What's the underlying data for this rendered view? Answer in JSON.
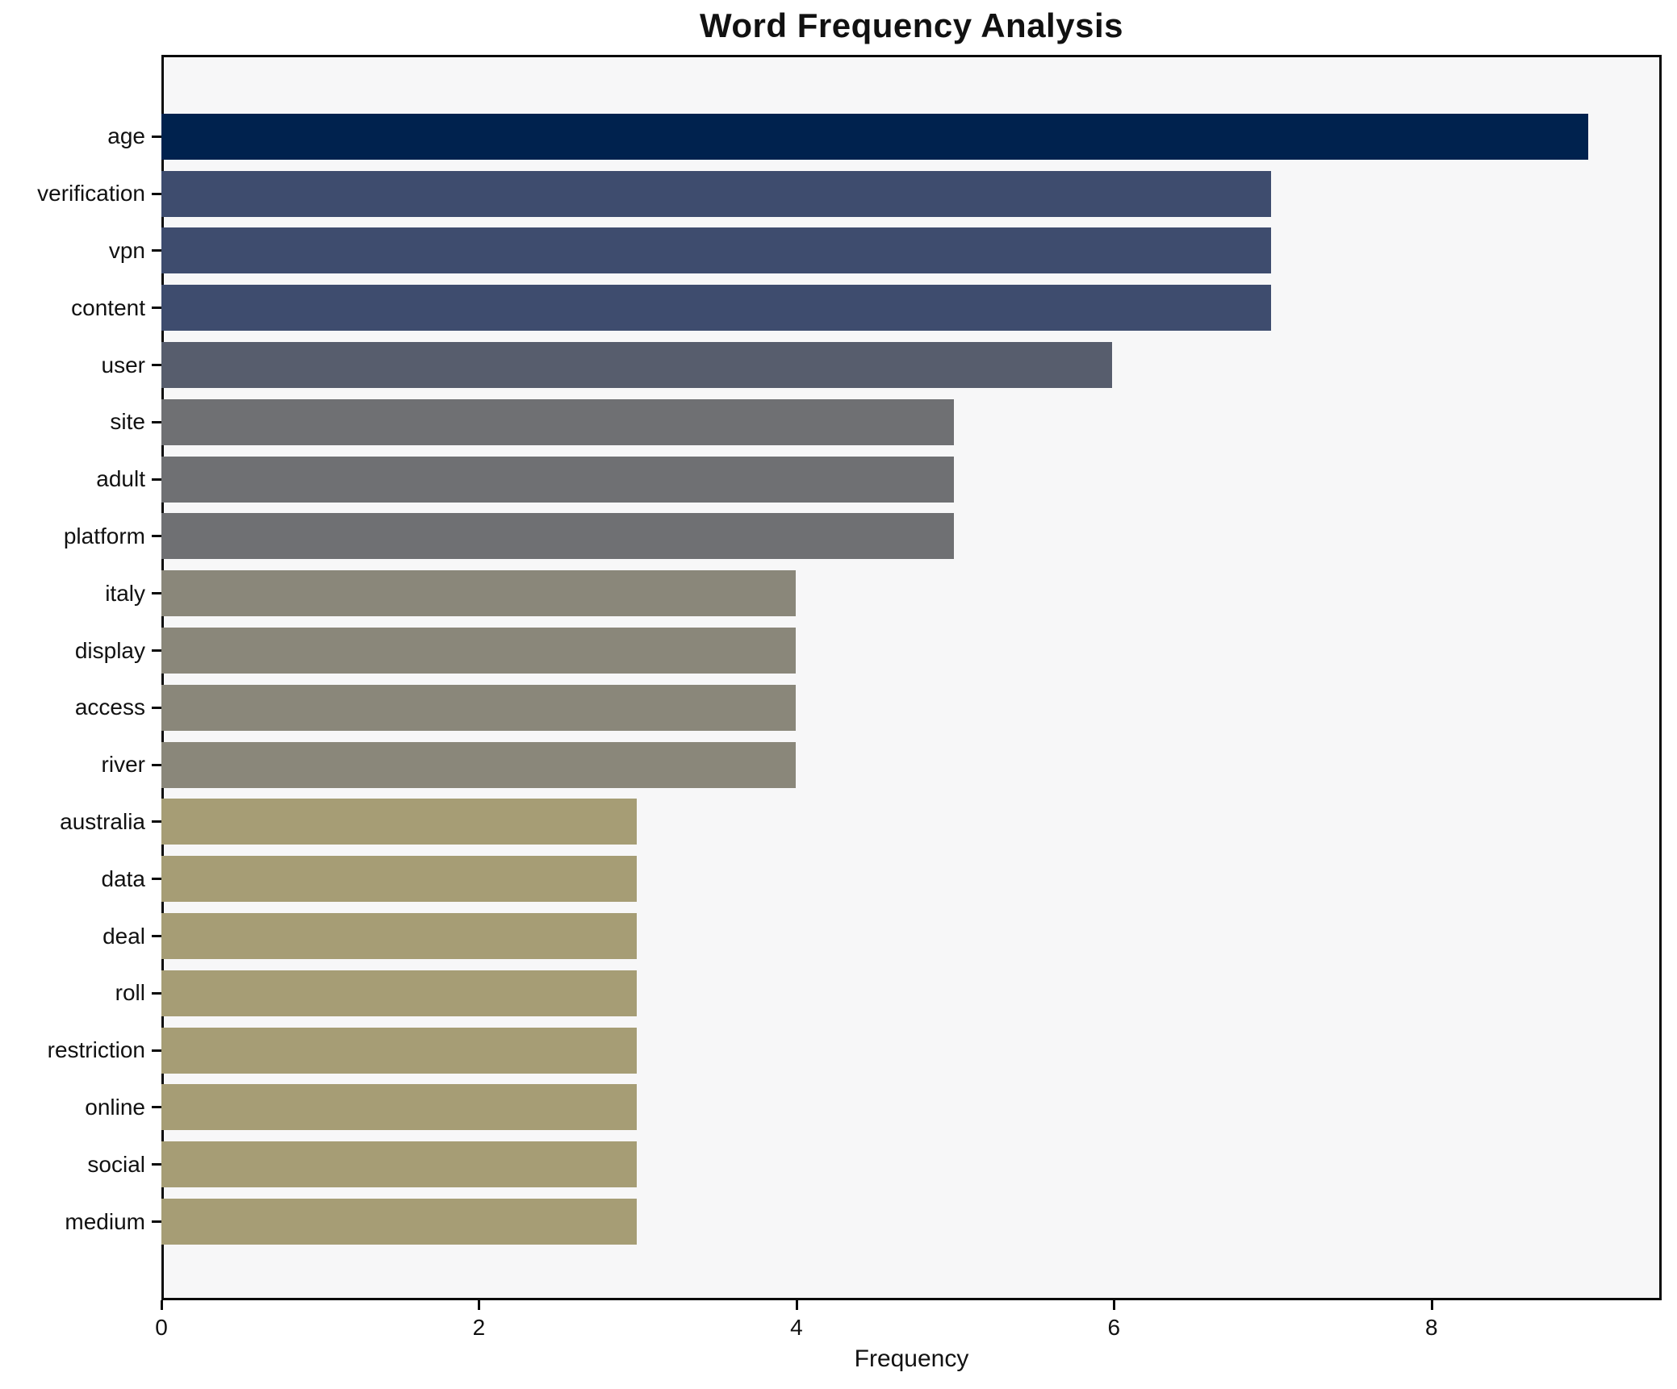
{
  "chart_data": {
    "type": "bar",
    "orientation": "horizontal",
    "title": "Word Frequency Analysis",
    "xlabel": "Frequency",
    "ylabel": "",
    "categories": [
      "age",
      "verification",
      "vpn",
      "content",
      "user",
      "site",
      "adult",
      "platform",
      "italy",
      "display",
      "access",
      "river",
      "australia",
      "data",
      "deal",
      "roll",
      "restriction",
      "online",
      "social",
      "medium"
    ],
    "values": [
      9,
      7,
      7,
      7,
      6,
      5,
      5,
      5,
      4,
      4,
      4,
      4,
      3,
      3,
      3,
      3,
      3,
      3,
      3,
      3
    ],
    "bar_colors": [
      "#00224e",
      "#3e4c6e",
      "#3e4c6e",
      "#3e4c6e",
      "#575d6d",
      "#6f7073",
      "#6f7073",
      "#6f7073",
      "#8a877a",
      "#8a877a",
      "#8a877a",
      "#8a877a",
      "#a69d75",
      "#a69d75",
      "#a69d75",
      "#a69d75",
      "#a69d75",
      "#a69d75",
      "#a69d75",
      "#a69d75"
    ],
    "xlim": [
      0,
      9.45
    ],
    "xticks": [
      0,
      2,
      4,
      6,
      8
    ],
    "grid": false,
    "legend": "none",
    "plot_background": "#f7f7f8",
    "outer_background": "#ffffff",
    "axis_color": "#0a0a0a"
  }
}
